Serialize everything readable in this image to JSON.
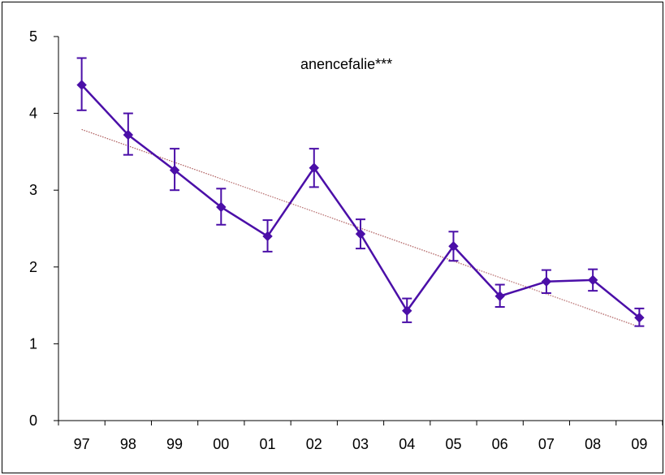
{
  "chart_data": {
    "type": "line",
    "title": "anencefalie***",
    "categories": [
      "97",
      "98",
      "99",
      "00",
      "01",
      "02",
      "03",
      "04",
      "05",
      "06",
      "07",
      "08",
      "09"
    ],
    "series": [
      {
        "values": [
          4.37,
          3.72,
          3.26,
          2.78,
          2.4,
          3.29,
          2.43,
          1.43,
          2.27,
          1.62,
          1.81,
          1.83,
          1.34
        ],
        "error_low": [
          4.04,
          3.46,
          3.0,
          2.55,
          2.2,
          3.04,
          2.24,
          1.28,
          2.08,
          1.48,
          1.66,
          1.69,
          1.23
        ],
        "error_high": [
          4.72,
          4.0,
          3.54,
          3.02,
          2.61,
          3.54,
          2.62,
          1.59,
          2.46,
          1.77,
          1.96,
          1.97,
          1.46
        ],
        "color": "#4B0FA8"
      }
    ],
    "trendline": {
      "start": 3.79,
      "end": 1.22,
      "color": "#A04040"
    },
    "ylim": [
      0,
      5
    ],
    "yticks": [
      "0",
      "1",
      "2",
      "3",
      "4",
      "5"
    ],
    "grid": false,
    "legend": "none"
  }
}
